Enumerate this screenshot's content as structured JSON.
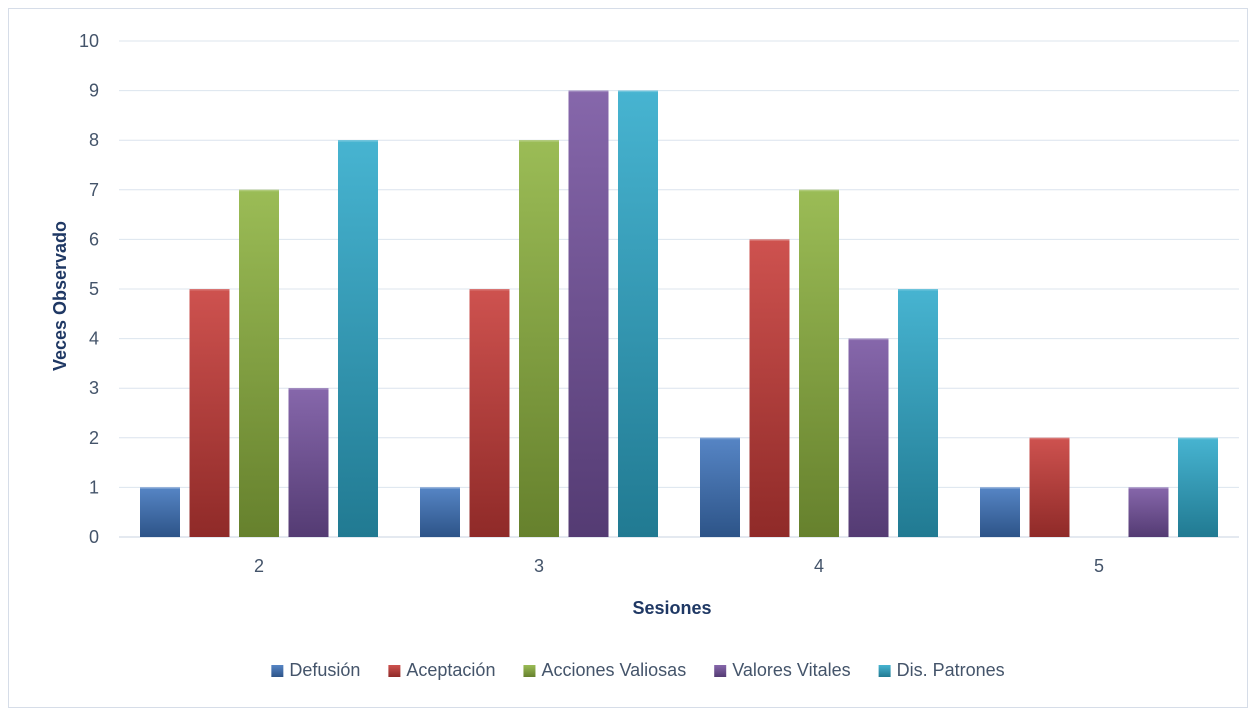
{
  "chart_data": {
    "type": "bar",
    "title": "",
    "xlabel": "Sesiones",
    "ylabel": "Veces Observado",
    "categories": [
      "2",
      "3",
      "4",
      "5"
    ],
    "ylim": [
      0,
      10
    ],
    "yticks": [
      0,
      1,
      2,
      3,
      4,
      5,
      6,
      7,
      8,
      9,
      10
    ],
    "grid": true,
    "legend_position": "bottom",
    "series": [
      {
        "name": "Defusión",
        "color": "#3f74bd",
        "values": [
          1,
          1,
          2,
          1
        ]
      },
      {
        "name": "Aceptación",
        "color": "#c73a37",
        "values": [
          5,
          5,
          6,
          2
        ]
      },
      {
        "name": "Acciones Valiosas",
        "color": "#8db33f",
        "values": [
          7,
          8,
          7,
          0
        ]
      },
      {
        "name": "Valores Vitales",
        "color": "#7552a0",
        "values": [
          3,
          9,
          4,
          1
        ]
      },
      {
        "name": "Dis. Patrones",
        "color": "#2eaacb",
        "values": [
          8,
          9,
          5,
          2
        ]
      }
    ]
  }
}
